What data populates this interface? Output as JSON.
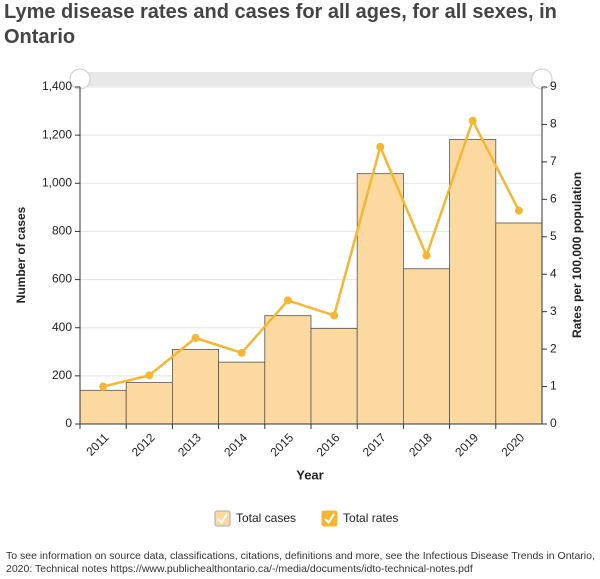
{
  "chart_data": {
    "type": "bar",
    "title": "Lyme disease rates and cases  for all ages,  for all sexes, in Ontario",
    "x_label": "Year",
    "y_label": "Number of cases",
    "y2_label": "Rates per 100,000 population",
    "categories": [
      "2011",
      "2012",
      "2013",
      "2014",
      "2015",
      "2016",
      "2017",
      "2018",
      "2019",
      "2020"
    ],
    "series": [
      {
        "name": "Total cases",
        "type": "bar",
        "color": "#fcd9a0",
        "values": [
          140,
          172,
          310,
          257,
          450,
          397,
          1040,
          645,
          1182,
          835
        ]
      },
      {
        "name": "Total rates",
        "type": "line",
        "axis": "y2",
        "color": "#f5b731",
        "values": [
          1.0,
          1.3,
          2.3,
          1.9,
          3.3,
          2.9,
          7.4,
          4.5,
          8.1,
          5.7
        ]
      }
    ],
    "ylim": [
      0,
      1400
    ],
    "yticks": [
      0,
      200,
      400,
      600,
      800,
      {
        "value": 1000,
        "label": "1,000"
      },
      {
        "value": 1200,
        "label": "1,200"
      },
      {
        "value": 1400,
        "label": "1,400"
      }
    ],
    "y2lim": [
      0,
      9
    ],
    "y2ticks": [
      0,
      1,
      2,
      3,
      4,
      5,
      6,
      7,
      8,
      9
    ],
    "grid": true,
    "note": "To see information on source data, classifications, citations, definitions and more, see the Infectious Disease Trends in Ontario, 2020: Technical notes https://www.publichealthontario.ca/-/media/documents/idto-technical-notes.pdf"
  }
}
